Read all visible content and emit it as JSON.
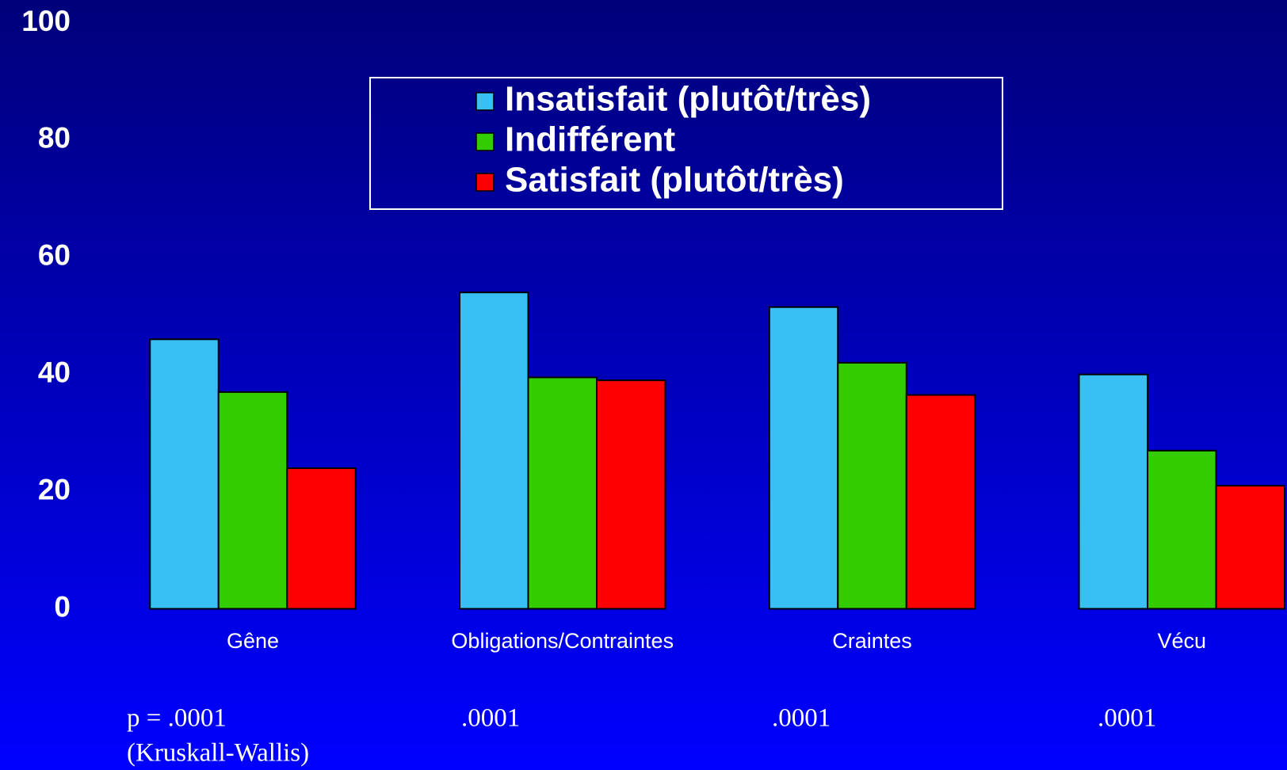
{
  "chart_data": {
    "type": "bar",
    "categories": [
      "Gêne",
      "Obligations/Contraintes",
      "Craintes",
      "Vécu"
    ],
    "series": [
      {
        "name": "Insatisfait (plutôt/très)",
        "color": "#38c0f5",
        "values": [
          46,
          54,
          51.5,
          40
        ]
      },
      {
        "name": "Indifférent",
        "color": "#33cc00",
        "values": [
          37,
          39.5,
          42,
          27
        ]
      },
      {
        "name": "Satisfait (plutôt/très)",
        "color": "#ff0000",
        "values": [
          24,
          39,
          36.5,
          21
        ]
      }
    ],
    "ylim": [
      0,
      100
    ],
    "yticks": [
      0,
      20,
      40,
      60,
      80,
      100
    ],
    "grid": false,
    "p_values": [
      "p = .0001",
      ".0001",
      ".0001",
      ".0001"
    ],
    "test_note": "(Kruskall-Wallis)"
  }
}
